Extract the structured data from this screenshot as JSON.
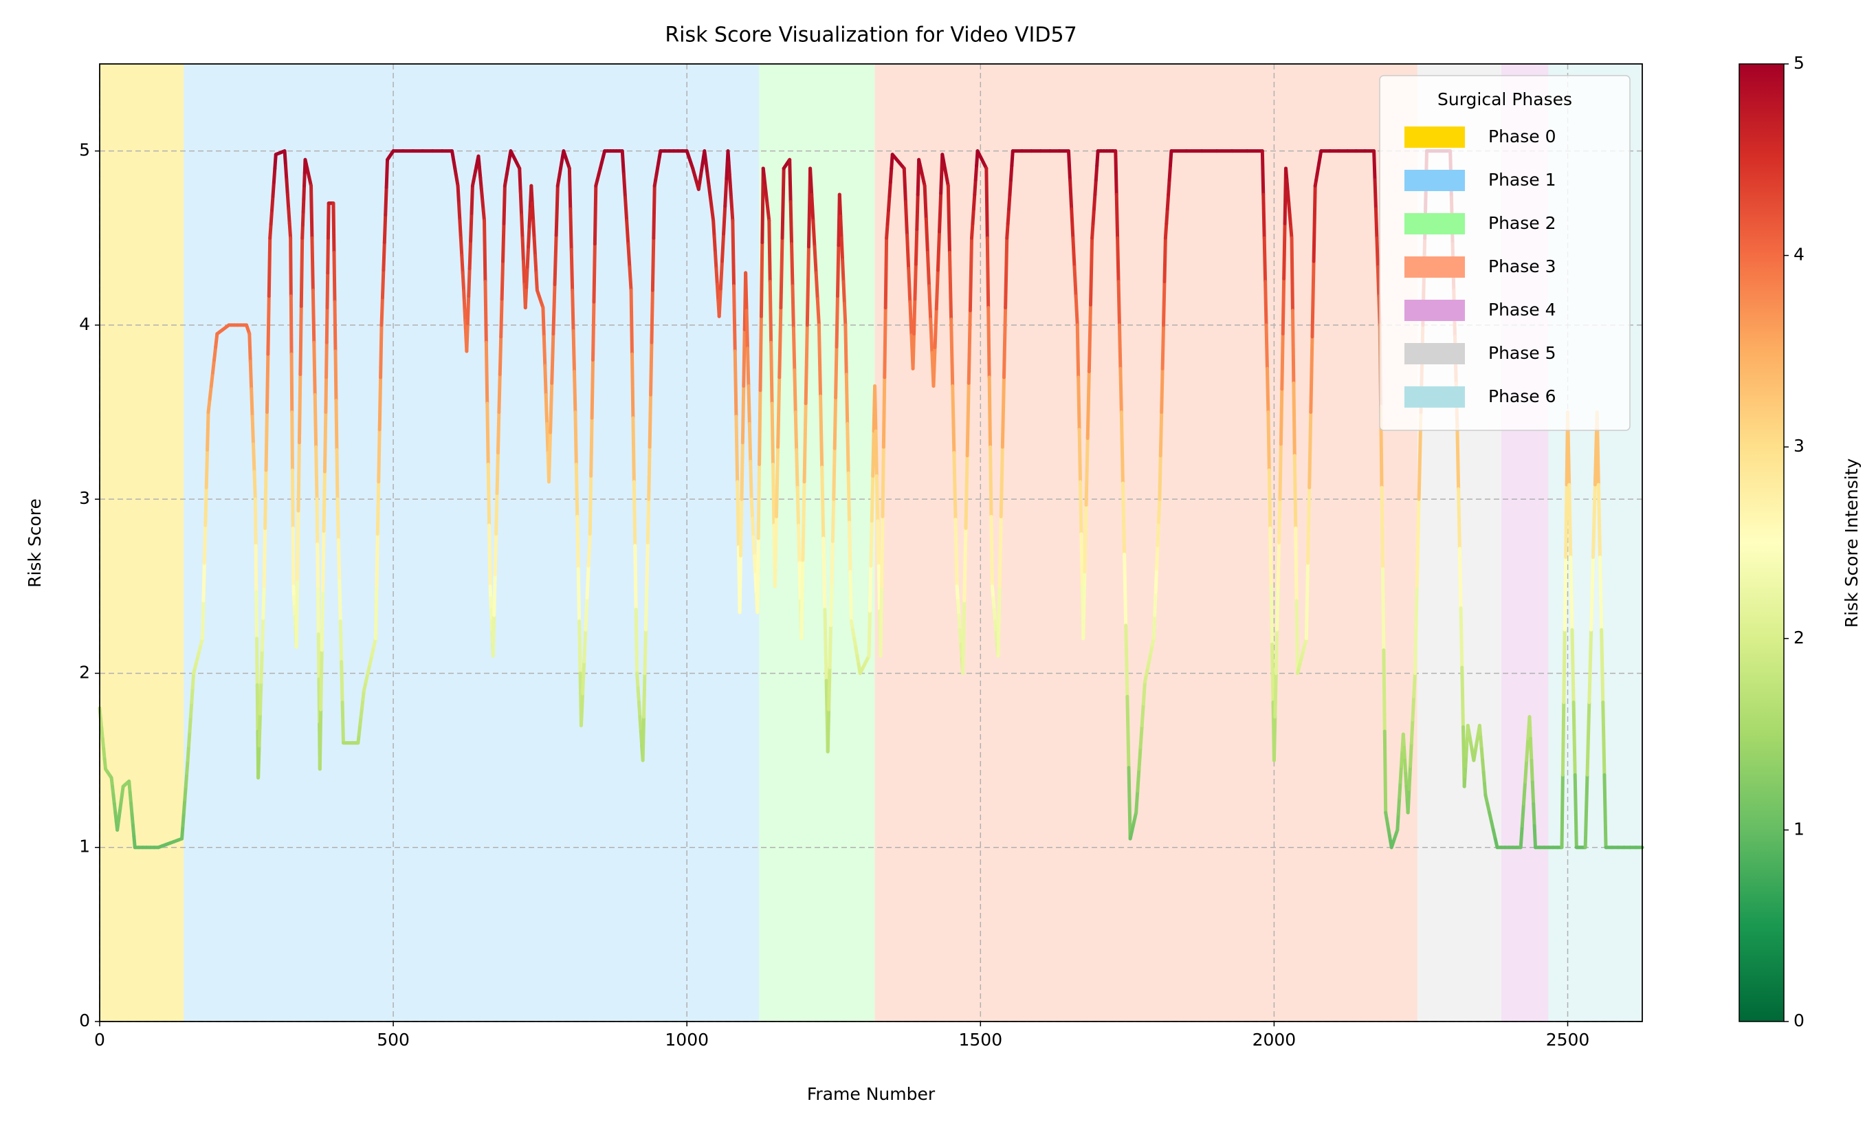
{
  "chart_data": {
    "type": "line",
    "title": "Risk Score Visualization for Video VID57",
    "x_label": "Frame Number",
    "y_label": "Risk Score",
    "x": [
      0,
      10,
      20,
      30,
      40,
      50,
      60,
      100,
      140,
      150,
      160,
      175,
      185,
      200,
      220,
      250,
      255,
      265,
      270,
      280,
      290,
      300,
      315,
      325,
      330,
      335,
      345,
      350,
      360,
      370,
      375,
      385,
      390,
      398,
      405,
      415,
      430,
      440,
      450,
      470,
      480,
      490,
      500,
      600,
      610,
      620,
      625,
      635,
      645,
      655,
      665,
      670,
      680,
      690,
      700,
      715,
      725,
      735,
      745,
      755,
      765,
      780,
      790,
      800,
      810,
      820,
      835,
      845,
      860,
      890,
      905,
      915,
      925,
      935,
      945,
      955,
      1000,
      1010,
      1020,
      1030,
      1045,
      1055,
      1070,
      1078,
      1090,
      1100,
      1110,
      1120,
      1130,
      1140,
      1150,
      1165,
      1175,
      1185,
      1195,
      1210,
      1225,
      1240,
      1250,
      1260,
      1270,
      1280,
      1295,
      1310,
      1320,
      1330,
      1340,
      1350,
      1370,
      1385,
      1395,
      1405,
      1420,
      1435,
      1445,
      1460,
      1470,
      1485,
      1495,
      1510,
      1520,
      1530,
      1545,
      1555,
      1650,
      1665,
      1675,
      1690,
      1700,
      1730,
      1740,
      1755,
      1765,
      1780,
      1795,
      1805,
      1815,
      1825,
      1980,
      1990,
      2000,
      2010,
      2020,
      2030,
      2040,
      2055,
      2070,
      2080,
      2170,
      2180,
      2190,
      2200,
      2210,
      2220,
      2228,
      2240,
      2260,
      2300,
      2312,
      2324,
      2330,
      2340,
      2350,
      2360,
      2380,
      2420,
      2435,
      2445,
      2490,
      2500,
      2515,
      2530,
      2550,
      2565,
      2627
    ],
    "values": [
      1.8,
      1.45,
      1.4,
      1.1,
      1.35,
      1.38,
      1.0,
      1.0,
      1.05,
      1.5,
      2.0,
      2.2,
      3.5,
      3.95,
      4.0,
      4.0,
      3.95,
      3.0,
      1.4,
      2.5,
      4.5,
      4.98,
      5.0,
      4.5,
      2.5,
      2.15,
      4.5,
      4.95,
      4.8,
      3.0,
      1.45,
      3.5,
      4.7,
      4.7,
      3.0,
      1.6,
      1.6,
      1.6,
      1.9,
      2.2,
      4.0,
      4.95,
      5.0,
      5.0,
      4.8,
      4.2,
      3.85,
      4.8,
      4.97,
      4.6,
      2.5,
      2.1,
      3.5,
      4.8,
      5.0,
      4.9,
      4.1,
      4.8,
      4.2,
      4.1,
      3.1,
      4.8,
      5.0,
      4.9,
      3.5,
      1.7,
      2.8,
      4.8,
      5.0,
      5.0,
      4.2,
      2.0,
      1.5,
      3.0,
      4.8,
      5.0,
      5.0,
      4.9,
      4.78,
      5.0,
      4.6,
      4.05,
      5.0,
      4.6,
      2.35,
      4.3,
      3.0,
      2.35,
      4.9,
      4.6,
      2.5,
      4.9,
      4.95,
      3.5,
      2.2,
      4.9,
      4.0,
      1.55,
      3.0,
      4.75,
      4.0,
      2.3,
      2.0,
      2.1,
      3.65,
      2.1,
      4.5,
      4.98,
      4.9,
      3.75,
      4.95,
      4.8,
      3.65,
      4.98,
      4.8,
      2.5,
      2.0,
      4.5,
      5.0,
      4.9,
      2.5,
      2.1,
      4.5,
      5.0,
      5.0,
      4.0,
      2.2,
      4.5,
      5.0,
      5.0,
      3.5,
      1.05,
      1.2,
      1.95,
      2.2,
      3.0,
      4.5,
      5.0,
      5.0,
      3.5,
      1.5,
      3.0,
      4.9,
      4.5,
      2.0,
      2.2,
      4.8,
      5.0,
      5.0,
      4.0,
      1.2,
      1.0,
      1.1,
      1.65,
      1.2,
      2.0,
      5.0,
      5.0,
      3.4,
      1.35,
      1.7,
      1.5,
      1.7,
      1.3,
      1.0,
      1.0,
      1.75,
      1.0,
      1.0,
      3.5,
      1.0,
      1.0,
      3.5,
      1.0,
      1.0
    ],
    "colormap": "RdYlGn_r",
    "xlim": [
      0,
      2627
    ],
    "ylim": [
      0,
      5.5
    ],
    "xticks": [
      0,
      500,
      1000,
      1500,
      2000,
      2500
    ],
    "yticks": [
      0,
      1,
      2,
      3,
      4,
      5
    ],
    "grid": true,
    "legend_title": "Surgical Phases",
    "legend_loc": "upper right",
    "phases": [
      {
        "name": "Phase 0",
        "color": "#ffd700",
        "start": 0,
        "end": 143
      },
      {
        "name": "Phase 1",
        "color": "#87cefa",
        "start": 143,
        "end": 1123
      },
      {
        "name": "Phase 2",
        "color": "#98fb98",
        "start": 1123,
        "end": 1320
      },
      {
        "name": "Phase 3",
        "color": "#ffa07a",
        "start": 1320,
        "end": 2244
      },
      {
        "name": "Phase 4",
        "color": "#dda0dd",
        "start": 2387,
        "end": 2467
      },
      {
        "name": "Phase 5",
        "color": "#d3d3d3",
        "start": 2244,
        "end": 2387
      },
      {
        "name": "Phase 6",
        "color": "#b0e0e6",
        "start": 2467,
        "end": 2627
      }
    ],
    "colorbar": {
      "label": "Risk Score Intensity",
      "lim": [
        0,
        5
      ],
      "ticks": [
        0,
        1,
        2,
        3,
        4,
        5
      ]
    }
  }
}
